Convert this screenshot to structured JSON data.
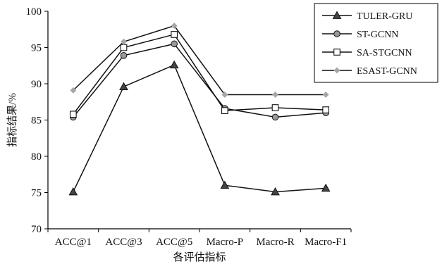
{
  "chart_data": {
    "type": "line",
    "title": "",
    "xlabel": "各评估指标",
    "ylabel": "指标结果/%",
    "categories": [
      "ACC@1",
      "ACC@3",
      "ACC@5",
      "Macro-P",
      "Macro-R",
      "Macro-F1"
    ],
    "ylim": [
      70,
      100
    ],
    "yticks": [
      "70",
      "75",
      "80",
      "85",
      "90",
      "95",
      "100"
    ],
    "grid": false,
    "legend_position": "top-right",
    "series": [
      {
        "name": "TULER-GRU",
        "marker": "triangle",
        "color": "#444444",
        "values": [
          75.1,
          89.6,
          92.6,
          76.0,
          75.1,
          75.6
        ]
      },
      {
        "name": "ST-GCNN",
        "marker": "circle",
        "color": "#999999",
        "values": [
          85.4,
          93.9,
          95.5,
          86.6,
          85.4,
          86.0
        ]
      },
      {
        "name": "SA-STGCNN",
        "marker": "square",
        "color": "#ffffff",
        "values": [
          85.8,
          95.0,
          96.8,
          86.3,
          86.7,
          86.4
        ]
      },
      {
        "name": "ESAST-GCNN",
        "marker": "diamond",
        "color": "#a6a6a6",
        "values": [
          89.1,
          95.8,
          98.0,
          88.5,
          88.5,
          88.5
        ]
      }
    ]
  }
}
